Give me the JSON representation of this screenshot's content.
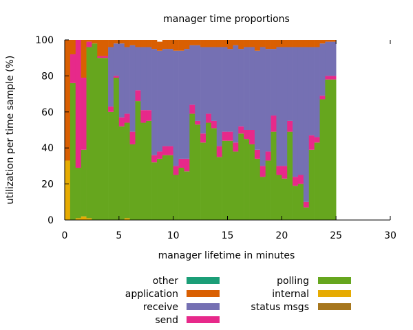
{
  "chart_data": {
    "type": "area",
    "title": "manager time proportions",
    "xlabel": "manager lifetime in minutes",
    "ylabel": "utilization per time sample (%)",
    "xlim": [
      0,
      30
    ],
    "ylim": [
      0,
      100
    ],
    "xticks": [
      0,
      5,
      10,
      15,
      20,
      25,
      30
    ],
    "yticks": [
      0,
      20,
      40,
      60,
      80,
      100
    ],
    "grid": false,
    "stacked": true,
    "legend_position": "bottom",
    "x_bins": [
      0,
      0.5,
      1,
      1.5,
      2,
      2.5,
      3,
      3.5,
      4,
      4.5,
      5,
      5.5,
      6,
      6.5,
      7,
      7.5,
      8,
      8.5,
      9,
      9.5,
      10,
      10.5,
      11,
      11.5,
      12,
      12.5,
      13,
      13.5,
      14,
      14.5,
      15,
      15.5,
      16,
      16.5,
      17,
      17.5,
      18,
      18.5,
      19,
      19.5,
      20,
      20.5,
      21,
      21.5,
      22,
      22.5,
      23,
      23.5,
      24,
      24.5,
      25,
      25.5,
      26
    ],
    "series": [
      {
        "name": "other",
        "color": "#1b9e77",
        "values": [
          0,
          0,
          0,
          0,
          0,
          0,
          0,
          0,
          0,
          0,
          0,
          0,
          0,
          0,
          0,
          0,
          0,
          0,
          0,
          0,
          0,
          0,
          0,
          0,
          0,
          0,
          0,
          0,
          0,
          0,
          0,
          0,
          0,
          0,
          0,
          0,
          0,
          0,
          0,
          0,
          0,
          0,
          0,
          0,
          0,
          0,
          0,
          0,
          0,
          0,
          0,
          0
        ]
      },
      {
        "name": "status msgs",
        "color": "#a6761d",
        "values": [
          0,
          0,
          0,
          0,
          0,
          0,
          0,
          0,
          0,
          0,
          0,
          0,
          0,
          0,
          0,
          0,
          0,
          0,
          0,
          0,
          0,
          0,
          0,
          0,
          0,
          0,
          0,
          0,
          0,
          0,
          0,
          0,
          0,
          0,
          0,
          0,
          0,
          0,
          0,
          0,
          0,
          0,
          0,
          0,
          0,
          0,
          0,
          0,
          0,
          0,
          0,
          0
        ]
      },
      {
        "name": "internal",
        "color": "#e6ab02",
        "values": [
          33,
          0,
          1,
          2,
          1,
          0,
          0,
          0,
          0,
          0,
          0,
          1,
          0,
          0,
          0,
          0,
          0,
          0,
          0,
          0,
          0,
          0,
          0,
          0,
          0,
          0,
          0,
          0,
          0,
          0,
          0,
          0,
          0,
          0,
          0,
          0,
          0,
          0,
          0,
          0,
          0,
          0,
          0,
          0,
          0,
          0,
          0,
          0,
          0,
          0,
          0,
          0
        ]
      },
      {
        "name": "polling",
        "color": "#66a61e",
        "values": [
          0,
          76,
          28,
          37,
          95,
          98,
          90,
          90,
          60,
          79,
          52,
          53,
          42,
          66,
          54,
          55,
          32,
          34,
          36,
          36,
          25,
          29,
          27,
          59,
          53,
          43,
          54,
          51,
          35,
          44,
          44,
          38,
          48,
          45,
          42,
          34,
          24,
          33,
          49,
          25,
          23,
          49,
          19,
          20,
          7,
          39,
          43,
          67,
          78,
          78,
          0,
          0
        ]
      },
      {
        "name": "send",
        "color": "#e7298a",
        "values": [
          0,
          16,
          71,
          40,
          3,
          0,
          1,
          1,
          3,
          1,
          5,
          5,
          7,
          6,
          7,
          6,
          4,
          4,
          5,
          5,
          5,
          5,
          7,
          5,
          2,
          5,
          5,
          4,
          6,
          5,
          5,
          5,
          4,
          5,
          8,
          5,
          6,
          5,
          9,
          5,
          7,
          6,
          5,
          5,
          3,
          8,
          3,
          2,
          2,
          2,
          0,
          0
        ]
      },
      {
        "name": "receive",
        "color": "#7570b3",
        "values": [
          0,
          0,
          0,
          0,
          0,
          0,
          0,
          0,
          33,
          18,
          41,
          37,
          48,
          24,
          35,
          35,
          59,
          56,
          54,
          54,
          64,
          60,
          61,
          33,
          42,
          48,
          37,
          41,
          55,
          47,
          46,
          54,
          43,
          46,
          46,
          55,
          66,
          57,
          37,
          66,
          66,
          41,
          72,
          71,
          86,
          49,
          50,
          29,
          19,
          19,
          0,
          0
        ]
      },
      {
        "name": "application",
        "color": "#d95f02",
        "values": [
          67,
          8,
          0,
          21,
          1,
          2,
          9,
          9,
          4,
          2,
          2,
          4,
          3,
          4,
          4,
          4,
          5,
          5,
          5,
          5,
          6,
          6,
          5,
          3,
          3,
          4,
          4,
          4,
          4,
          4,
          5,
          3,
          5,
          4,
          4,
          6,
          4,
          5,
          5,
          4,
          4,
          4,
          4,
          4,
          4,
          4,
          4,
          2,
          1,
          1,
          0,
          0
        ]
      }
    ]
  }
}
